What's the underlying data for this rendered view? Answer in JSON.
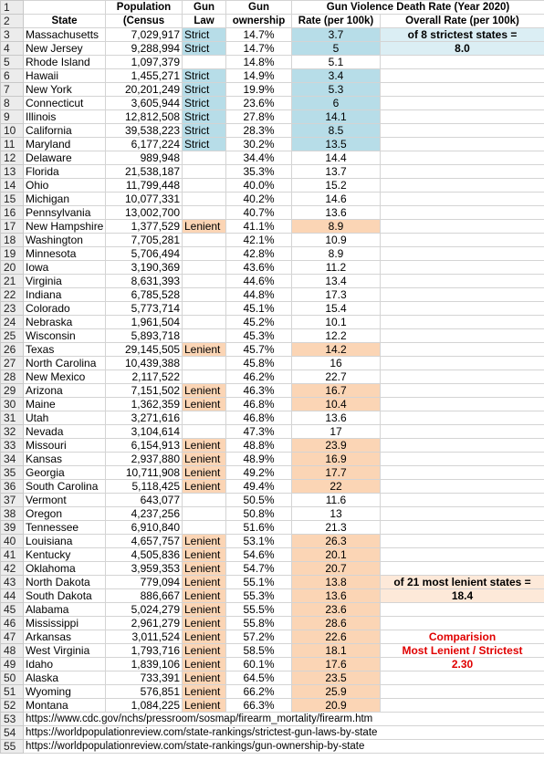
{
  "headers": {
    "row1": {
      "population": "Population",
      "gun_law": "Gun",
      "gun_ownership": "Gun",
      "rate_group": "Gun Violence Death Rate (Year 2020)"
    },
    "row2": {
      "state": "State",
      "population": "(Census",
      "gun_law": "Law",
      "gun_ownership": "ownership",
      "rate": "Rate (per 100k)",
      "overall": "Overall Rate (per 100k)"
    }
  },
  "rows": [
    {
      "n": "3",
      "state": "Massachusetts",
      "pop": "7,029,917",
      "law": "Strict",
      "own": "14.7%",
      "rate": "3.7"
    },
    {
      "n": "4",
      "state": "New Jersey",
      "pop": "9,288,994",
      "law": "Strict",
      "own": "14.7%",
      "rate": "5"
    },
    {
      "n": "5",
      "state": "Rhode Island",
      "pop": "1,097,379",
      "law": "",
      "own": "14.8%",
      "rate": "5.1"
    },
    {
      "n": "6",
      "state": "Hawaii",
      "pop": "1,455,271",
      "law": "Strict",
      "own": "14.9%",
      "rate": "3.4"
    },
    {
      "n": "7",
      "state": "New York",
      "pop": "20,201,249",
      "law": "Strict",
      "own": "19.9%",
      "rate": "5.3"
    },
    {
      "n": "8",
      "state": "Connecticut",
      "pop": "3,605,944",
      "law": "Strict",
      "own": "23.6%",
      "rate": "6"
    },
    {
      "n": "9",
      "state": "Illinois",
      "pop": "12,812,508",
      "law": "Strict",
      "own": "27.8%",
      "rate": "14.1"
    },
    {
      "n": "10",
      "state": "California",
      "pop": "39,538,223",
      "law": "Strict",
      "own": "28.3%",
      "rate": "8.5"
    },
    {
      "n": "11",
      "state": "Maryland",
      "pop": "6,177,224",
      "law": "Strict",
      "own": "30.2%",
      "rate": "13.5"
    },
    {
      "n": "12",
      "state": "Delaware",
      "pop": "989,948",
      "law": "",
      "own": "34.4%",
      "rate": "14.4"
    },
    {
      "n": "13",
      "state": "Florida",
      "pop": "21,538,187",
      "law": "",
      "own": "35.3%",
      "rate": "13.7"
    },
    {
      "n": "14",
      "state": "Ohio",
      "pop": "11,799,448",
      "law": "",
      "own": "40.0%",
      "rate": "15.2"
    },
    {
      "n": "15",
      "state": "Michigan",
      "pop": "10,077,331",
      "law": "",
      "own": "40.2%",
      "rate": "14.6"
    },
    {
      "n": "16",
      "state": "Pennsylvania",
      "pop": "13,002,700",
      "law": "",
      "own": "40.7%",
      "rate": "13.6"
    },
    {
      "n": "17",
      "state": "New Hampshire",
      "pop": "1,377,529",
      "law": "Lenient",
      "own": "41.1%",
      "rate": "8.9"
    },
    {
      "n": "18",
      "state": "Washington",
      "pop": "7,705,281",
      "law": "",
      "own": "42.1%",
      "rate": "10.9"
    },
    {
      "n": "19",
      "state": "Minnesota",
      "pop": "5,706,494",
      "law": "",
      "own": "42.8%",
      "rate": "8.9"
    },
    {
      "n": "20",
      "state": "Iowa",
      "pop": "3,190,369",
      "law": "",
      "own": "43.6%",
      "rate": "11.2"
    },
    {
      "n": "21",
      "state": "Virginia",
      "pop": "8,631,393",
      "law": "",
      "own": "44.6%",
      "rate": "13.4"
    },
    {
      "n": "22",
      "state": "Indiana",
      "pop": "6,785,528",
      "law": "",
      "own": "44.8%",
      "rate": "17.3"
    },
    {
      "n": "23",
      "state": "Colorado",
      "pop": "5,773,714",
      "law": "",
      "own": "45.1%",
      "rate": "15.4"
    },
    {
      "n": "24",
      "state": "Nebraska",
      "pop": "1,961,504",
      "law": "",
      "own": "45.2%",
      "rate": "10.1"
    },
    {
      "n": "25",
      "state": "Wisconsin",
      "pop": "5,893,718",
      "law": "",
      "own": "45.3%",
      "rate": "12.2"
    },
    {
      "n": "26",
      "state": "Texas",
      "pop": "29,145,505",
      "law": "Lenient",
      "own": "45.7%",
      "rate": "14.2"
    },
    {
      "n": "27",
      "state": "North Carolina",
      "pop": "10,439,388",
      "law": "",
      "own": "45.8%",
      "rate": "16"
    },
    {
      "n": "28",
      "state": "New Mexico",
      "pop": "2,117,522",
      "law": "",
      "own": "46.2%",
      "rate": "22.7"
    },
    {
      "n": "29",
      "state": "Arizona",
      "pop": "7,151,502",
      "law": "Lenient",
      "own": "46.3%",
      "rate": "16.7"
    },
    {
      "n": "30",
      "state": "Maine",
      "pop": "1,362,359",
      "law": "Lenient",
      "own": "46.8%",
      "rate": "10.4"
    },
    {
      "n": "31",
      "state": "Utah",
      "pop": "3,271,616",
      "law": "",
      "own": "46.8%",
      "rate": "13.6"
    },
    {
      "n": "32",
      "state": "Nevada",
      "pop": "3,104,614",
      "law": "",
      "own": "47.3%",
      "rate": "17"
    },
    {
      "n": "33",
      "state": "Missouri",
      "pop": "6,154,913",
      "law": "Lenient",
      "own": "48.8%",
      "rate": "23.9"
    },
    {
      "n": "34",
      "state": "Kansas",
      "pop": "2,937,880",
      "law": "Lenient",
      "own": "48.9%",
      "rate": "16.9"
    },
    {
      "n": "35",
      "state": "Georgia",
      "pop": "10,711,908",
      "law": "Lenient",
      "own": "49.2%",
      "rate": "17.7"
    },
    {
      "n": "36",
      "state": "South Carolina",
      "pop": "5,118,425",
      "law": "Lenient",
      "own": "49.4%",
      "rate": "22"
    },
    {
      "n": "37",
      "state": "Vermont",
      "pop": "643,077",
      "law": "",
      "own": "50.5%",
      "rate": "11.6"
    },
    {
      "n": "38",
      "state": "Oregon",
      "pop": "4,237,256",
      "law": "",
      "own": "50.8%",
      "rate": "13"
    },
    {
      "n": "39",
      "state": "Tennessee",
      "pop": "6,910,840",
      "law": "",
      "own": "51.6%",
      "rate": "21.3"
    },
    {
      "n": "40",
      "state": "Louisiana",
      "pop": "4,657,757",
      "law": "Lenient",
      "own": "53.1%",
      "rate": "26.3"
    },
    {
      "n": "41",
      "state": "Kentucky",
      "pop": "4,505,836",
      "law": "Lenient",
      "own": "54.6%",
      "rate": "20.1"
    },
    {
      "n": "42",
      "state": "Oklahoma",
      "pop": "3,959,353",
      "law": "Lenient",
      "own": "54.7%",
      "rate": "20.7"
    },
    {
      "n": "43",
      "state": "North Dakota",
      "pop": "779,094",
      "law": "Lenient",
      "own": "55.1%",
      "rate": "13.8"
    },
    {
      "n": "44",
      "state": "South Dakota",
      "pop": "886,667",
      "law": "Lenient",
      "own": "55.3%",
      "rate": "13.6"
    },
    {
      "n": "45",
      "state": "Alabama",
      "pop": "5,024,279",
      "law": "Lenient",
      "own": "55.5%",
      "rate": "23.6"
    },
    {
      "n": "46",
      "state": "Mississippi",
      "pop": "2,961,279",
      "law": "Lenient",
      "own": "55.8%",
      "rate": "28.6"
    },
    {
      "n": "47",
      "state": "Arkansas",
      "pop": "3,011,524",
      "law": "Lenient",
      "own": "57.2%",
      "rate": "22.6"
    },
    {
      "n": "48",
      "state": "West Virginia",
      "pop": "1,793,716",
      "law": "Lenient",
      "own": "58.5%",
      "rate": "18.1"
    },
    {
      "n": "49",
      "state": "Idaho",
      "pop": "1,839,106",
      "law": "Lenient",
      "own": "60.1%",
      "rate": "17.6"
    },
    {
      "n": "50",
      "state": "Alaska",
      "pop": "733,391",
      "law": "Lenient",
      "own": "64.5%",
      "rate": "23.5"
    },
    {
      "n": "51",
      "state": "Wyoming",
      "pop": "576,851",
      "law": "Lenient",
      "own": "66.2%",
      "rate": "25.9"
    },
    {
      "n": "52",
      "state": "Montana",
      "pop": "1,084,225",
      "law": "Lenient",
      "own": "66.3%",
      "rate": "20.9"
    }
  ],
  "notes": {
    "strict_label": "of 8 strictest states =",
    "strict_value": "8.0",
    "lenient_label": "of 21 most lenient states =",
    "lenient_value": "18.4",
    "comparison_title": "Comparision",
    "comparison_sub": "Most Lenient / Strictest",
    "comparison_value": "2.30"
  },
  "sources": [
    {
      "n": "53",
      "url": "https://www.cdc.gov/nchs/pressroom/sosmap/firearm_mortality/firearm.htm"
    },
    {
      "n": "54",
      "url": "https://worldpopulationreview.com/state-rankings/strictest-gun-laws-by-state"
    },
    {
      "n": "55",
      "url": "https://worldpopulationreview.com/state-rankings/gun-ownership-by-state"
    }
  ],
  "colors": {
    "strict_fill": "#b7dde8",
    "lenient_fill": "#fbd5b5",
    "comparison_text": "#e00000"
  }
}
